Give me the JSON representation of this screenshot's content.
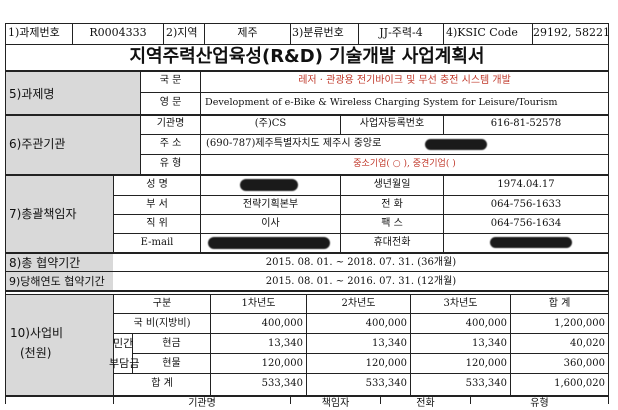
{
  "header": {
    "project_no_label": "1)과제번호",
    "project_no": "R0004333",
    "region_label": "2)지역",
    "region": "제주",
    "category_label": "3)분류번호",
    "category": "JJ-주력-4",
    "ksic_label": "4)KSIC Code",
    "ksic": "29192, 58221"
  },
  "doc_title": "지역주력산업육성(R&D) 기술개발 사업계획서",
  "project_name": {
    "label": "5)과제명",
    "korean_label": "국 문",
    "korean": "레저 · 관광용 전기바이크 및 무선 충전 시스템 개발",
    "english_label": "영 문",
    "english": "Development of e-Bike & Wireless Charging System for Leisure/Tourism"
  },
  "host": {
    "label": "6)주관기관",
    "org_label": "기관명",
    "org": "(주)CS",
    "bizno_label": "사업자등록번호",
    "bizno": "616-81-52578",
    "addr_label": "주 소",
    "addr": "(690-787)제주특별자치도 제주시 중앙로",
    "type_label": "유 형",
    "type": "중소기업( ○ ), 중견기업(   )"
  },
  "manager": {
    "label": "7)총괄책임자",
    "name_label": "성 명",
    "birth_label": "생년월일",
    "birth": "1974.04.17",
    "dept_label": "부 서",
    "dept": "전략기획본부",
    "phone_label": "전 화",
    "phone": "064-756-1633",
    "position_label": "직 위",
    "position": "이사",
    "fax_label": "팩 스",
    "fax": "064-756-1634",
    "email_label": "E-mail",
    "mobile_label": "휴대전화"
  },
  "period": {
    "total_label": "8)총 협약기간",
    "total": "2015. 08. 01.  ~  2018. 07. 31. (36개월)",
    "year_label": "9)당해연도 협약기간",
    "year": "2015. 08. 01.  ~  2016. 07. 31. (12개월)"
  },
  "budget": {
    "label": "10)사업비",
    "unit": "(천원)",
    "div_label": "구분",
    "years": [
      "1차년도",
      "2차년도",
      "3차년도"
    ],
    "total_col": "합 계",
    "rows": [
      {
        "label": "국 비(지방비)",
        "values": [
          "400,000",
          "400,000",
          "400,000",
          "1,200,000"
        ]
      },
      {
        "label": "현금",
        "values": [
          "13,340",
          "13,340",
          "13,340",
          "40,020"
        ]
      },
      {
        "label": "현물",
        "values": [
          "120,000",
          "120,000",
          "120,000",
          "360,000"
        ]
      },
      {
        "label": "합 계",
        "values": [
          "533,340",
          "533,340",
          "533,340",
          "1,600,020"
        ]
      }
    ],
    "private_label": "민간",
    "burden_label": "부담금"
  },
  "footer_partial": [
    "기관명",
    "책임자",
    "전화",
    "유형"
  ]
}
